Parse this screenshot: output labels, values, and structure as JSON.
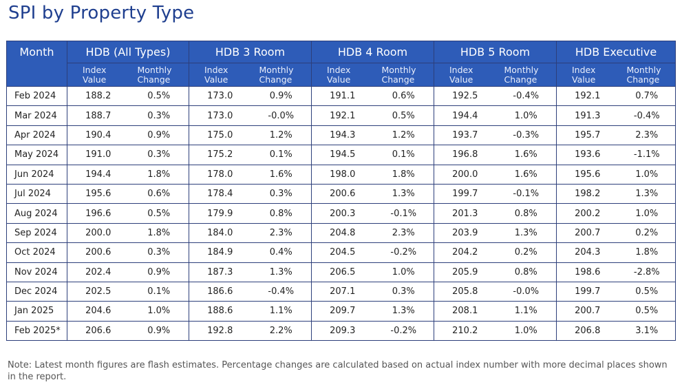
{
  "title": "SPI by Property Type",
  "table": {
    "month_header": "Month",
    "groups": [
      "HDB (All Types)",
      "HDB 3 Room",
      "HDB 4 Room",
      "HDB 5 Room",
      "HDB Executive"
    ],
    "sub_index": "Index Value",
    "sub_change": "Monthly Change",
    "rows": [
      {
        "month": "Feb 2024",
        "cells": [
          "188.2",
          "0.5%",
          "173.0",
          "0.9%",
          "191.1",
          "0.6%",
          "192.5",
          "-0.4%",
          "192.1",
          "0.7%"
        ]
      },
      {
        "month": "Mar 2024",
        "cells": [
          "188.7",
          "0.3%",
          "173.0",
          "-0.0%",
          "192.1",
          "0.5%",
          "194.4",
          "1.0%",
          "191.3",
          "-0.4%"
        ]
      },
      {
        "month": "Apr 2024",
        "cells": [
          "190.4",
          "0.9%",
          "175.0",
          "1.2%",
          "194.3",
          "1.2%",
          "193.7",
          "-0.3%",
          "195.7",
          "2.3%"
        ]
      },
      {
        "month": "May 2024",
        "cells": [
          "191.0",
          "0.3%",
          "175.2",
          "0.1%",
          "194.5",
          "0.1%",
          "196.8",
          "1.6%",
          "193.6",
          "-1.1%"
        ]
      },
      {
        "month": "Jun 2024",
        "cells": [
          "194.4",
          "1.8%",
          "178.0",
          "1.6%",
          "198.0",
          "1.8%",
          "200.0",
          "1.6%",
          "195.6",
          "1.0%"
        ]
      },
      {
        "month": "Jul 2024",
        "cells": [
          "195.6",
          "0.6%",
          "178.4",
          "0.3%",
          "200.6",
          "1.3%",
          "199.7",
          "-0.1%",
          "198.2",
          "1.3%"
        ]
      },
      {
        "month": "Aug 2024",
        "cells": [
          "196.6",
          "0.5%",
          "179.9",
          "0.8%",
          "200.3",
          "-0.1%",
          "201.3",
          "0.8%",
          "200.2",
          "1.0%"
        ]
      },
      {
        "month": "Sep 2024",
        "cells": [
          "200.0",
          "1.8%",
          "184.0",
          "2.3%",
          "204.8",
          "2.3%",
          "203.9",
          "1.3%",
          "200.7",
          "0.2%"
        ]
      },
      {
        "month": "Oct 2024",
        "cells": [
          "200.6",
          "0.3%",
          "184.9",
          "0.4%",
          "204.5",
          "-0.2%",
          "204.2",
          "0.2%",
          "204.3",
          "1.8%"
        ]
      },
      {
        "month": "Nov 2024",
        "cells": [
          "202.4",
          "0.9%",
          "187.3",
          "1.3%",
          "206.5",
          "1.0%",
          "205.9",
          "0.8%",
          "198.6",
          "-2.8%"
        ]
      },
      {
        "month": "Dec 2024",
        "cells": [
          "202.5",
          "0.1%",
          "186.6",
          "-0.4%",
          "207.1",
          "0.3%",
          "205.8",
          "-0.0%",
          "199.7",
          "0.5%"
        ]
      },
      {
        "month": "Jan 2025",
        "cells": [
          "204.6",
          "1.0%",
          "188.6",
          "1.1%",
          "209.7",
          "1.3%",
          "208.1",
          "1.1%",
          "200.7",
          "0.5%"
        ]
      },
      {
        "month": "Feb 2025*",
        "cells": [
          "206.6",
          "0.9%",
          "192.8",
          "2.2%",
          "209.3",
          "-0.2%",
          "210.2",
          "1.0%",
          "206.8",
          "3.1%"
        ]
      }
    ]
  },
  "note": "Note: Latest month figures are flash estimates. Percentage changes are calculated based on actual index number with more decimal places shown in the report.",
  "colors": {
    "title": "#1f3f8f",
    "header_bg": "#2e5cb8",
    "border": "#2c3e7a"
  }
}
